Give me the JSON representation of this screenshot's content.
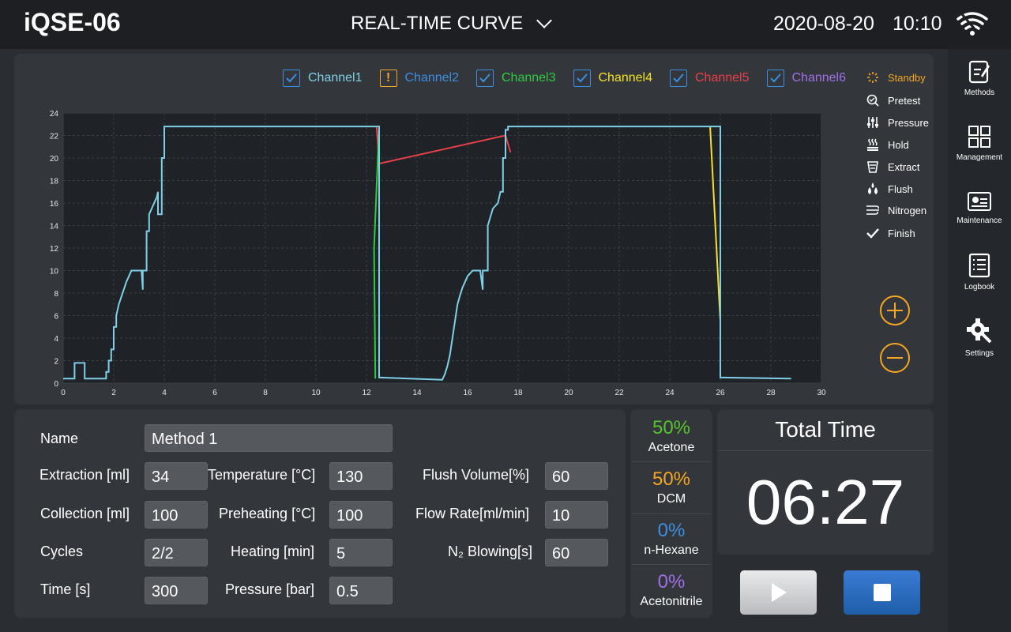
{
  "header": {
    "logo": "iQSE-06",
    "title": "REAL-TIME CURVE",
    "date": "2020-08-20",
    "time": "10:10"
  },
  "sidebar": {
    "items": [
      {
        "label": "Methods",
        "icon": "methods-icon"
      },
      {
        "label": "Management",
        "icon": "management-icon"
      },
      {
        "label": "Maintenance",
        "icon": "maintenance-icon"
      },
      {
        "label": "Logbook",
        "icon": "logbook-icon"
      },
      {
        "label": "Settings",
        "icon": "settings-icon"
      }
    ]
  },
  "legend": {
    "channels": [
      {
        "label": "Channel1",
        "color": "#7fd0e8",
        "state": "checked"
      },
      {
        "label": "Channel2",
        "color": "#3c8fe0",
        "state": "warning"
      },
      {
        "label": "Channel3",
        "color": "#2ecc40",
        "state": "checked"
      },
      {
        "label": "Channel4",
        "color": "#f5e02a",
        "state": "checked"
      },
      {
        "label": "Channel5",
        "color": "#e8404a",
        "state": "checked"
      },
      {
        "label": "Channel6",
        "color": "#a070e8",
        "state": "checked"
      }
    ]
  },
  "status": {
    "items": [
      {
        "label": "Standby",
        "icon": "standby-icon",
        "active": true
      },
      {
        "label": "Pretest",
        "icon": "pretest-icon"
      },
      {
        "label": "Pressure",
        "icon": "pressure-icon"
      },
      {
        "label": "Hold",
        "icon": "hold-icon"
      },
      {
        "label": "Extract",
        "icon": "extract-icon"
      },
      {
        "label": "Flush",
        "icon": "flush-icon"
      },
      {
        "label": "Nitrogen",
        "icon": "nitrogen-icon"
      },
      {
        "label": "Finish",
        "icon": "finish-icon"
      }
    ],
    "active_color": "#f5a623"
  },
  "chart_data": {
    "type": "line",
    "xlim": [
      0,
      30
    ],
    "ylim": [
      0,
      24
    ],
    "x_ticks": [
      "0",
      "2",
      "4",
      "6",
      "8",
      "10",
      "12",
      "14",
      "16",
      "18",
      "20",
      "22",
      "24",
      "26",
      "28",
      "30"
    ],
    "y_ticks": [
      "0",
      "2",
      "4",
      "6",
      "8",
      "10",
      "12",
      "14",
      "16",
      "18",
      "20",
      "22",
      "24"
    ],
    "grid": true,
    "series": [
      {
        "color": "#7fd0e8",
        "x": [
          0,
          0.45,
          0.45,
          0.85,
          0.85,
          1.3,
          1.7,
          1.7,
          1.8,
          1.8,
          1.9,
          1.9,
          2.0,
          2.0,
          2.1,
          2.1,
          2.2,
          2.5,
          2.7,
          3.1,
          3.15,
          3.15,
          3.3,
          3.3,
          3.4,
          3.4,
          3.5,
          3.6,
          3.7,
          3.75,
          3.75,
          3.9,
          3.9,
          4.0,
          4.0,
          12.5,
          12.5,
          12.55,
          12.55,
          15.0,
          15.1,
          15.2,
          15.3,
          15.4,
          15.5,
          15.6,
          15.7,
          15.8,
          15.9,
          16.0,
          16.2,
          16.5,
          16.6,
          16.6,
          16.8,
          16.8,
          17.0,
          17.2,
          17.3,
          17.4,
          17.4,
          17.5,
          17.5,
          17.6,
          17.6,
          26.0,
          26.0,
          26.1,
          28.8
        ],
        "y": [
          0.4,
          0.4,
          1.8,
          1.8,
          0.4,
          0.4,
          0.4,
          1.0,
          1.0,
          2.0,
          2.0,
          3.0,
          3.0,
          5.0,
          5.0,
          6.0,
          7.0,
          9.0,
          10.0,
          10.0,
          8.3,
          10.0,
          10.0,
          13.5,
          13.5,
          15.0,
          15.5,
          16.0,
          16.5,
          17.0,
          15.0,
          15.0,
          20.0,
          20.0,
          22.8,
          22.8,
          0.5,
          0.5,
          0.5,
          0.3,
          0.8,
          1.5,
          2.5,
          4.0,
          5.5,
          7.0,
          7.8,
          8.5,
          9.0,
          9.5,
          10.0,
          10.0,
          8.3,
          10.0,
          10.0,
          14.0,
          15.5,
          16.0,
          17.0,
          17.0,
          20.0,
          20.0,
          22.5,
          22.5,
          22.8,
          22.8,
          0.5,
          0.5,
          0.4
        ]
      },
      {
        "color": "#e8404a",
        "x": [
          12.4,
          12.5,
          17.5,
          17.7
        ],
        "y": [
          22.8,
          19.5,
          22.0,
          20.5
        ]
      },
      {
        "color": "#2ecc40",
        "x": [
          12.5,
          12.3,
          12.35
        ],
        "y": [
          22.8,
          12.0,
          0.4
        ]
      },
      {
        "color": "#f5e02a",
        "x": [
          25.6,
          25.6,
          26.0
        ],
        "y": [
          22.8,
          22.6,
          5.5
        ]
      }
    ]
  },
  "form": {
    "name_label": "Name",
    "name_value": "Method 1",
    "fields": [
      {
        "label": "Extraction [ml]",
        "value": "34"
      },
      {
        "label": "Collection [ml]",
        "value": "100"
      },
      {
        "label": "Cycles",
        "value": "2/2"
      },
      {
        "label": "Time [s]",
        "value": "300"
      },
      {
        "label": "Temperature [°C]",
        "value": "130"
      },
      {
        "label": "Preheating [°C]",
        "value": "100"
      },
      {
        "label": "Heating [min]",
        "value": "5"
      },
      {
        "label": "Pressure [bar]",
        "value": "0.5"
      },
      {
        "label": "Flush Volume[%]",
        "value": "60"
      },
      {
        "label": "Flow Rate[ml/min]",
        "value": "10"
      },
      {
        "label": "N₂ Blowing[s]",
        "value": "60"
      }
    ]
  },
  "solvents": [
    {
      "percent": "50%",
      "name": "Acetone",
      "color": "#57c42e"
    },
    {
      "percent": "50%",
      "name": "DCM",
      "color": "#f5a623"
    },
    {
      "percent": "0%",
      "name": "n-Hexane",
      "color": "#3c8fe0"
    },
    {
      "percent": "0%",
      "name": "Acetonitrile",
      "color": "#a070e8"
    }
  ],
  "total_time": {
    "title": "Total Time",
    "value": "06:27"
  },
  "controls": {
    "play_icon": "play-icon",
    "stop_icon": "stop-icon"
  }
}
